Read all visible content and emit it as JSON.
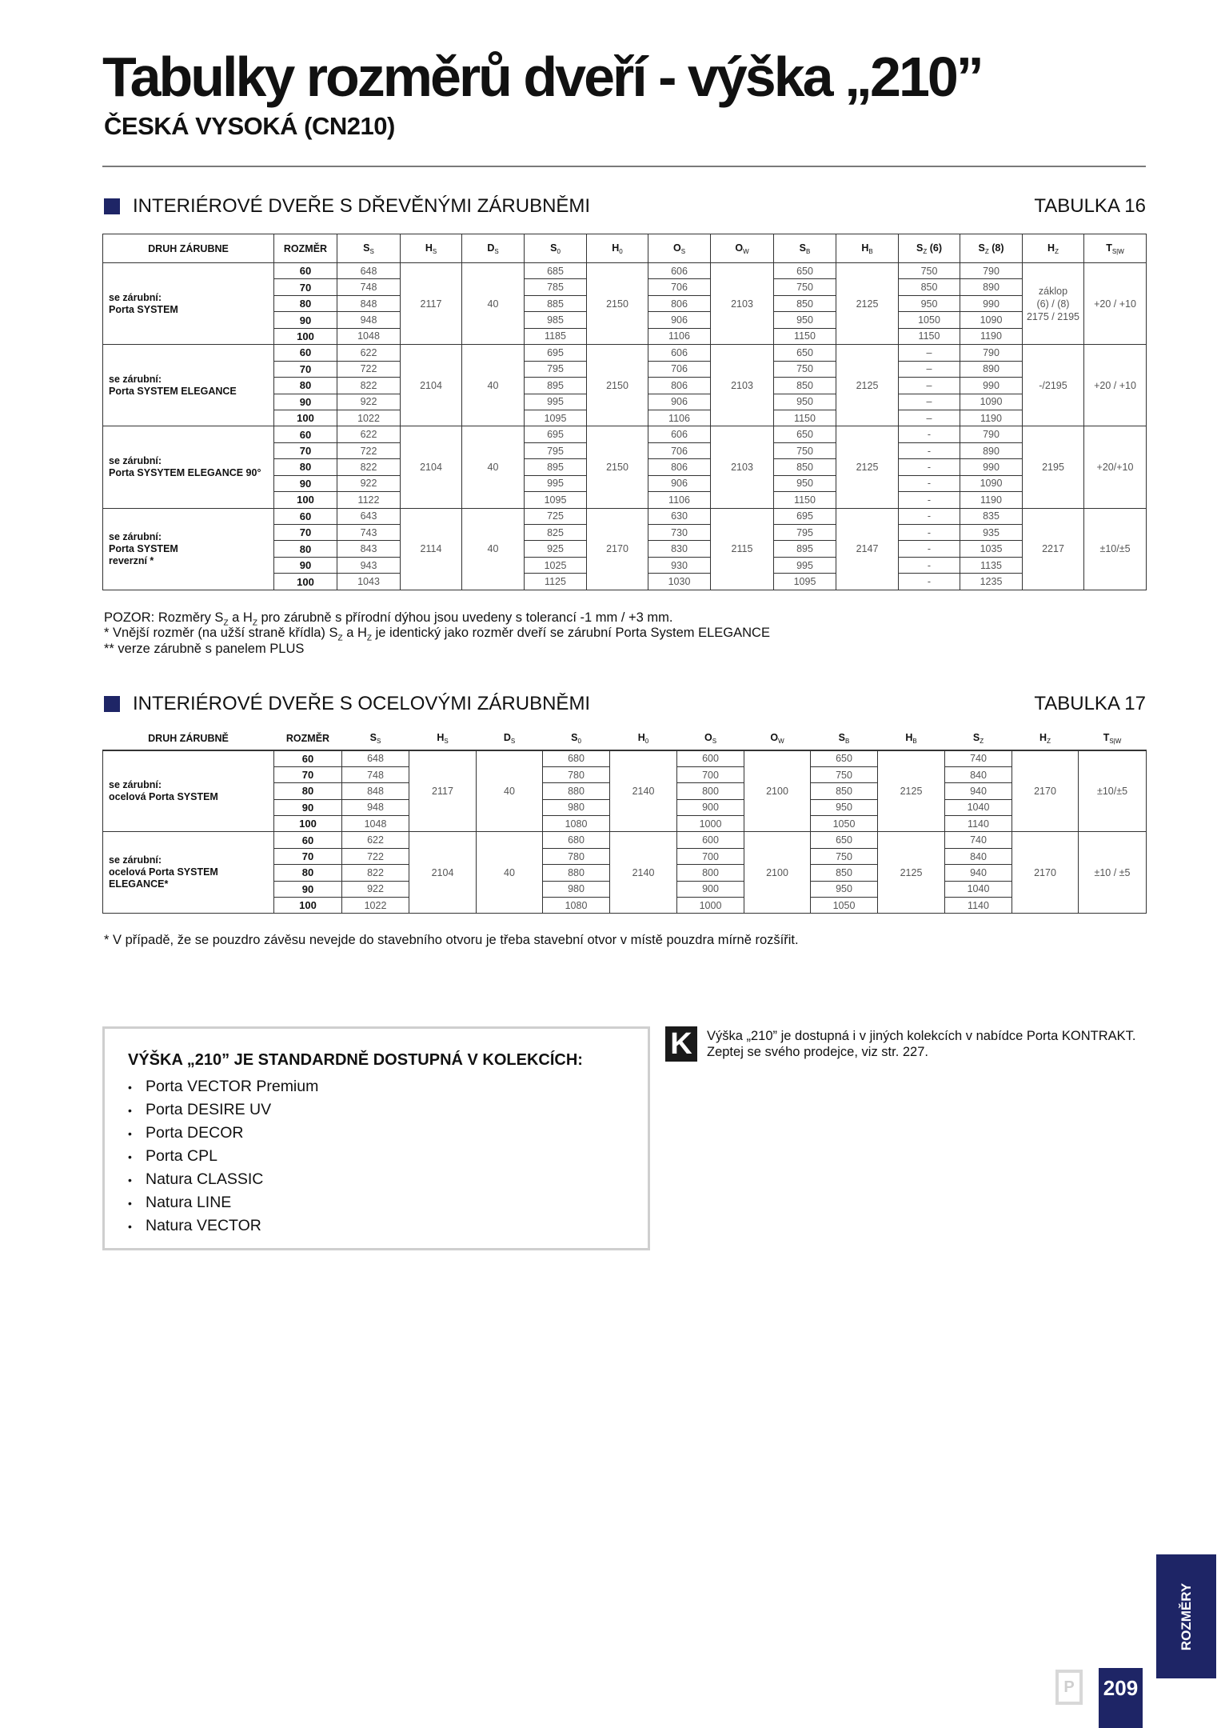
{
  "header": {
    "title": "Tabulky rozměrů dveří - výška „210”",
    "subtitle": "ČESKÁ VYSOKÁ (CN210)"
  },
  "accent_color": "#1e2566",
  "section1": {
    "heading": "INTERIÉROVÉ DVEŘE S DŘEVĚNÝMI ZÁRUBNĚMI",
    "table_label": "TABULKA 16",
    "columns": [
      {
        "main": "DRUH ZÁRUBNE",
        "sub": "",
        "suffix": ""
      },
      {
        "main": "ROZMĚR",
        "sub": "",
        "suffix": ""
      },
      {
        "main": "S",
        "sub": "S",
        "suffix": ""
      },
      {
        "main": "H",
        "sub": "S",
        "suffix": ""
      },
      {
        "main": "D",
        "sub": "S",
        "suffix": ""
      },
      {
        "main": "S",
        "sub": "0",
        "suffix": ""
      },
      {
        "main": "H",
        "sub": "0",
        "suffix": ""
      },
      {
        "main": "O",
        "sub": "S",
        "suffix": ""
      },
      {
        "main": "O",
        "sub": "W",
        "suffix": ""
      },
      {
        "main": "S",
        "sub": "B",
        "suffix": ""
      },
      {
        "main": "H",
        "sub": "B",
        "suffix": ""
      },
      {
        "main": "S",
        "sub": "Z",
        "suffix": " (6)"
      },
      {
        "main": "S",
        "sub": "Z",
        "suffix": " (8)"
      },
      {
        "main": "H",
        "sub": "Z",
        "suffix": ""
      },
      {
        "main": "T",
        "sub": "S|W",
        "suffix": ""
      }
    ],
    "groups": [
      {
        "label": [
          "se zárubní:",
          "Porta SYSTEM"
        ],
        "hs": "2117",
        "ds": "40",
        "h0": "2150",
        "ow": "2103",
        "hb": "2125",
        "hz": [
          "záklop",
          "(6) / (8)",
          "2175 / 2195"
        ],
        "tsw": "+20 / +10",
        "rows": [
          {
            "size": "60",
            "ss": "648",
            "s0": "685",
            "os": "606",
            "sb": "650",
            "sz6": "750",
            "sz8": "790"
          },
          {
            "size": "70",
            "ss": "748",
            "s0": "785",
            "os": "706",
            "sb": "750",
            "sz6": "850",
            "sz8": "890"
          },
          {
            "size": "80",
            "ss": "848",
            "s0": "885",
            "os": "806",
            "sb": "850",
            "sz6": "950",
            "sz8": "990"
          },
          {
            "size": "90",
            "ss": "948",
            "s0": "985",
            "os": "906",
            "sb": "950",
            "sz6": "1050",
            "sz8": "1090"
          },
          {
            "size": "100",
            "ss": "1048",
            "s0": "1185",
            "os": "1106",
            "sb": "1150",
            "sz6": "1150",
            "sz8": "1190"
          }
        ]
      },
      {
        "label": [
          "se zárubní:",
          "Porta SYSTEM ELEGANCE"
        ],
        "hs": "2104",
        "ds": "40",
        "h0": "2150",
        "ow": "2103",
        "hb": "2125",
        "hz": [
          "-/2195"
        ],
        "tsw": "+20 / +10",
        "rows": [
          {
            "size": "60",
            "ss": "622",
            "s0": "695",
            "os": "606",
            "sb": "650",
            "sz6": "–",
            "sz8": "790"
          },
          {
            "size": "70",
            "ss": "722",
            "s0": "795",
            "os": "706",
            "sb": "750",
            "sz6": "–",
            "sz8": "890"
          },
          {
            "size": "80",
            "ss": "822",
            "s0": "895",
            "os": "806",
            "sb": "850",
            "sz6": "–",
            "sz8": "990"
          },
          {
            "size": "90",
            "ss": "922",
            "s0": "995",
            "os": "906",
            "sb": "950",
            "sz6": "–",
            "sz8": "1090"
          },
          {
            "size": "100",
            "ss": "1022",
            "s0": "1095",
            "os": "1106",
            "sb": "1150",
            "sz6": "–",
            "sz8": "1190"
          }
        ]
      },
      {
        "label": [
          "se zárubní:",
          "Porta SYSYTEM ELEGANCE  90°"
        ],
        "hs": "2104",
        "ds": "40",
        "h0": "2150",
        "ow": "2103",
        "hb": "2125",
        "hz": [
          "2195"
        ],
        "tsw": "+20/+10",
        "rows": [
          {
            "size": "60",
            "ss": "622",
            "s0": "695",
            "os": "606",
            "sb": "650",
            "sz6": "-",
            "sz8": "790"
          },
          {
            "size": "70",
            "ss": "722",
            "s0": "795",
            "os": "706",
            "sb": "750",
            "sz6": "-",
            "sz8": "890"
          },
          {
            "size": "80",
            "ss": "822",
            "s0": "895",
            "os": "806",
            "sb": "850",
            "sz6": "-",
            "sz8": "990"
          },
          {
            "size": "90",
            "ss": "922",
            "s0": "995",
            "os": "906",
            "sb": "950",
            "sz6": "-",
            "sz8": "1090"
          },
          {
            "size": "100",
            "ss": "1122",
            "s0": "1095",
            "os": "1106",
            "sb": "1150",
            "sz6": "-",
            "sz8": "1190"
          }
        ]
      },
      {
        "label": [
          "se zárubní:",
          "Porta SYSTEM",
          "reverzní *"
        ],
        "hs": "2114",
        "ds": "40",
        "h0": "2170",
        "ow": "2115",
        "hb": "2147",
        "hz": [
          "2217"
        ],
        "tsw": "±10/±5",
        "rows": [
          {
            "size": "60",
            "ss": "643",
            "s0": "725",
            "os": "630",
            "sb": "695",
            "sz6": "-",
            "sz8": "835"
          },
          {
            "size": "70",
            "ss": "743",
            "s0": "825",
            "os": "730",
            "sb": "795",
            "sz6": "-",
            "sz8": "935"
          },
          {
            "size": "80",
            "ss": "843",
            "s0": "925",
            "os": "830",
            "sb": "895",
            "sz6": "-",
            "sz8": "1035"
          },
          {
            "size": "90",
            "ss": "943",
            "s0": "1025",
            "os": "930",
            "sb": "995",
            "sz6": "-",
            "sz8": "1135"
          },
          {
            "size": "100",
            "ss": "1043",
            "s0": "1125",
            "os": "1030",
            "sb": "1095",
            "sz6": "-",
            "sz8": "1235"
          }
        ]
      }
    ],
    "notes": {
      "n1_a": "POZOR: Rozměry S",
      "n1_sub1": "Z",
      "n1_b": " a H",
      "n1_sub2": "Z",
      "n1_c": " pro zárubně s přírodní dýhou jsou uvedeny s tolerancí -1 mm / +3 mm.",
      "n2_a": "* Vnější rozměr (na užší straně křídla) S",
      "n2_sub1": "Z",
      "n2_b": " a H",
      "n2_sub2": "Z",
      "n2_c": " je identický jako rozměr dveří se zárubní Porta System ELEGANCE",
      "n3": "** verze zárubně s panelem PLUS"
    }
  },
  "section2": {
    "heading": "INTERIÉROVÉ DVEŘE S OCELOVÝMI ZÁRUBNĚMI",
    "table_label": "TABULKA 17",
    "columns": [
      {
        "main": "DRUH ZÁRUBNĚ",
        "sub": "",
        "suffix": ""
      },
      {
        "main": "ROZMĚR",
        "sub": "",
        "suffix": ""
      },
      {
        "main": "S",
        "sub": "S",
        "suffix": ""
      },
      {
        "main": "H",
        "sub": "S",
        "suffix": ""
      },
      {
        "main": "D",
        "sub": "S",
        "suffix": ""
      },
      {
        "main": "S",
        "sub": "0",
        "suffix": ""
      },
      {
        "main": "H",
        "sub": "0",
        "suffix": ""
      },
      {
        "main": "O",
        "sub": "S",
        "suffix": ""
      },
      {
        "main": "O",
        "sub": "W",
        "suffix": ""
      },
      {
        "main": "S",
        "sub": "B",
        "suffix": ""
      },
      {
        "main": "H",
        "sub": "B",
        "suffix": ""
      },
      {
        "main": "S",
        "sub": "Z",
        "suffix": ""
      },
      {
        "main": "H",
        "sub": "Z",
        "suffix": ""
      },
      {
        "main": "T",
        "sub": "S|W",
        "suffix": ""
      }
    ],
    "groups": [
      {
        "label": [
          "se zárubní:",
          "ocelová Porta SYSTEM"
        ],
        "hs": "2117",
        "ds": "40",
        "h0": "2140",
        "ow": "2100",
        "hb": "2125",
        "hz": [
          "2170"
        ],
        "tsw": "±10/±5",
        "rows": [
          {
            "size": "60",
            "ss": "648",
            "s0": "680",
            "os": "600",
            "sb": "650",
            "sz": "740"
          },
          {
            "size": "70",
            "ss": "748",
            "s0": "780",
            "os": "700",
            "sb": "750",
            "sz": "840"
          },
          {
            "size": "80",
            "ss": "848",
            "s0": "880",
            "os": "800",
            "sb": "850",
            "sz": "940"
          },
          {
            "size": "90",
            "ss": "948",
            "s0": "980",
            "os": "900",
            "sb": "950",
            "sz": "1040"
          },
          {
            "size": "100",
            "ss": "1048",
            "s0": "1080",
            "os": "1000",
            "sb": "1050",
            "sz": "1140"
          }
        ]
      },
      {
        "label": [
          "se zárubní:",
          "ocelová  Porta SYSTEM",
          "ELEGANCE*"
        ],
        "hs": "2104",
        "ds": "40",
        "h0": "2140",
        "ow": "2100",
        "hb": "2125",
        "hz": [
          "2170"
        ],
        "tsw": "±10 / ±5",
        "rows": [
          {
            "size": "60",
            "ss": "622",
            "s0": "680",
            "os": "600",
            "sb": "650",
            "sz": "740"
          },
          {
            "size": "70",
            "ss": "722",
            "s0": "780",
            "os": "700",
            "sb": "750",
            "sz": "840"
          },
          {
            "size": "80",
            "ss": "822",
            "s0": "880",
            "os": "800",
            "sb": "850",
            "sz": "940"
          },
          {
            "size": "90",
            "ss": "922",
            "s0": "980",
            "os": "900",
            "sb": "950",
            "sz": "1040"
          },
          {
            "size": "100",
            "ss": "1022",
            "s0": "1080",
            "os": "1000",
            "sb": "1050",
            "sz": "1140"
          }
        ]
      }
    ],
    "footnote": "* V případě, že se pouzdro závěsu nevejde do stavebního otvoru je třeba stavební otvor v místě pouzdra mírně rozšířit."
  },
  "availability_box": {
    "title": "VÝŠKA „210” JE STANDARDNĚ DOSTUPNÁ V KOLEKCÍCH:",
    "items": [
      "Porta VECTOR Premium",
      "Porta DESIRE UV",
      "Porta DECOR",
      "Porta CPL",
      "Natura CLASSIC",
      "Natura LINE",
      "Natura VECTOR"
    ]
  },
  "kontrakt_note": {
    "icon_letter": "K",
    "line1": "Výška „210” je dostupná i v jiných kolekcích v nabídce Porta KONTRAKT.",
    "line2": "Zeptej se svého prodejce, viz str. 227."
  },
  "footer": {
    "side_tab": "ROZMĚRY",
    "page_number": "209",
    "logo_letter": "P"
  }
}
